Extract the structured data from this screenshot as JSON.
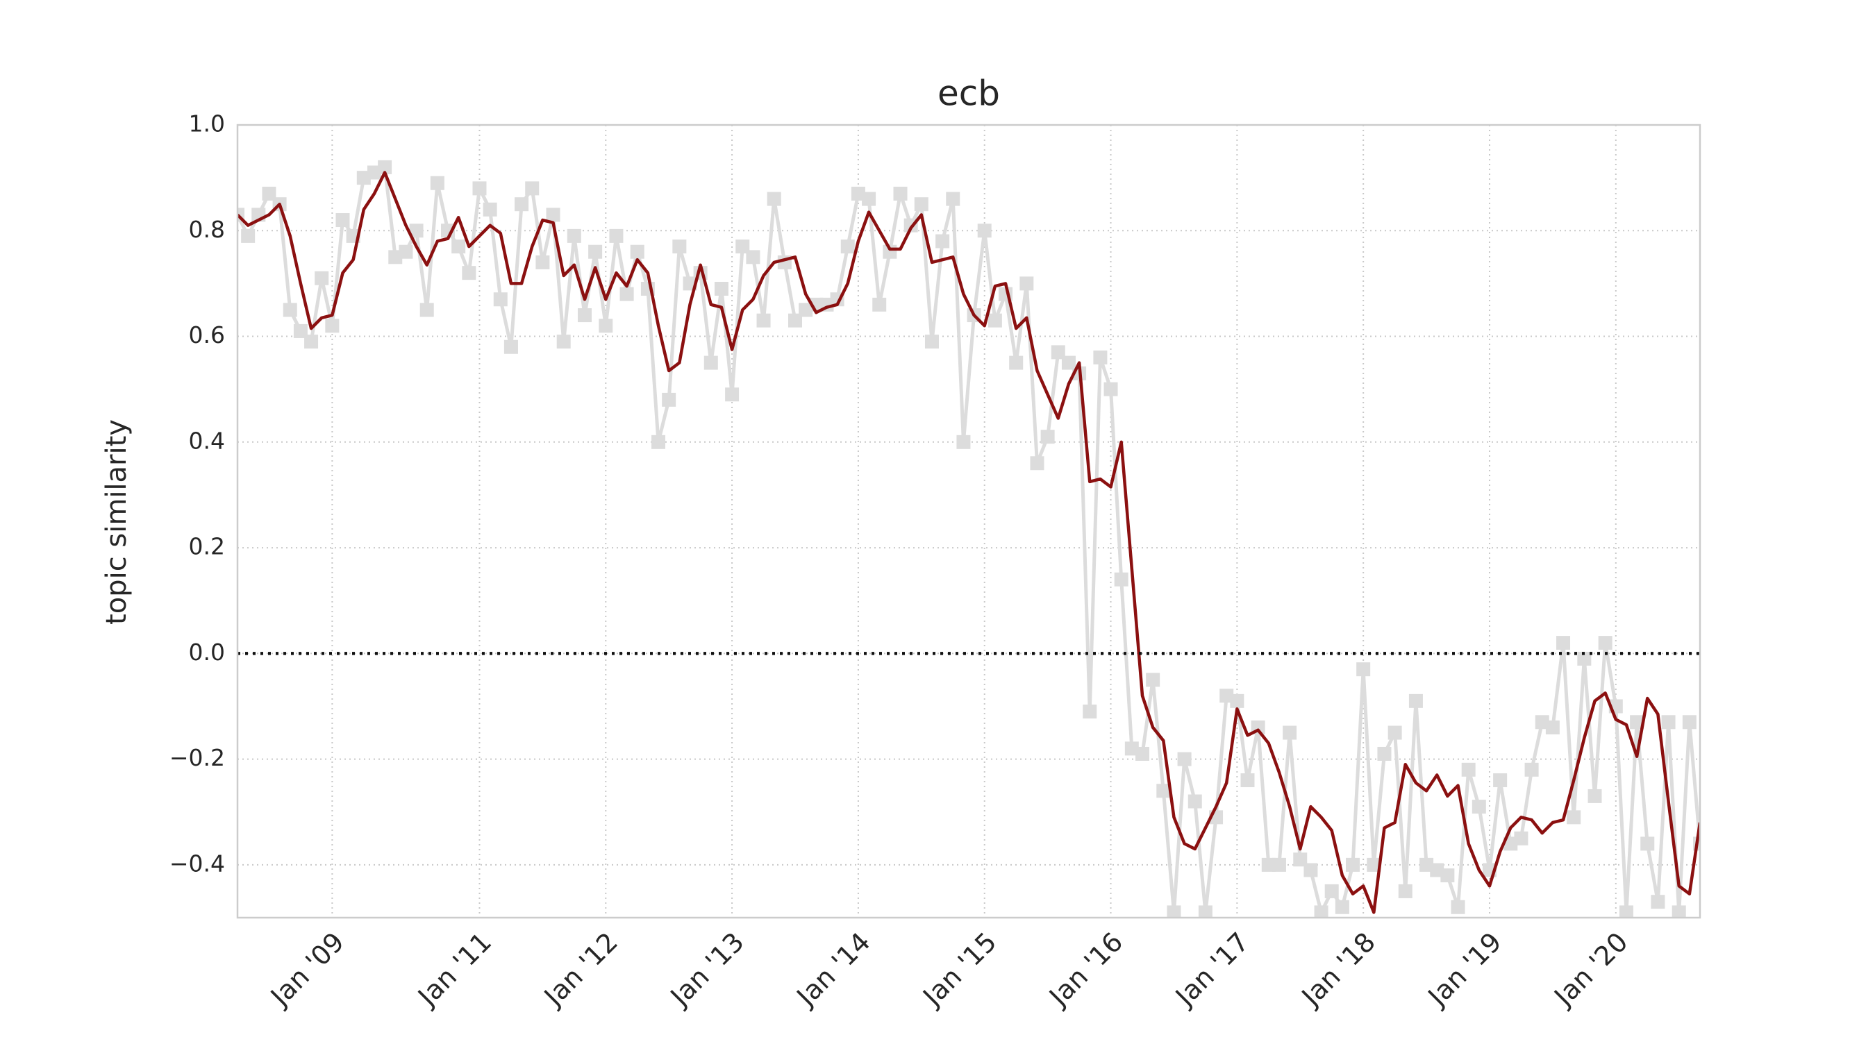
{
  "chart_data": {
    "type": "line",
    "title": "ecb",
    "y_label": "topic similarity",
    "categories": [
      null,
      null,
      null,
      null,
      null,
      null,
      null,
      null,
      null,
      "Jan '09",
      null,
      null,
      null,
      null,
      null,
      null,
      null,
      null,
      null,
      null,
      null,
      null,
      null,
      "Jan '11",
      null,
      null,
      null,
      null,
      null,
      null,
      null,
      null,
      null,
      null,
      null,
      "Jan '12",
      null,
      null,
      null,
      null,
      null,
      null,
      null,
      null,
      null,
      null,
      null,
      "Jan '13",
      null,
      null,
      null,
      null,
      null,
      null,
      null,
      null,
      null,
      null,
      null,
      "Jan '14",
      null,
      null,
      null,
      null,
      null,
      null,
      null,
      null,
      null,
      null,
      null,
      "Jan '15",
      null,
      null,
      null,
      null,
      null,
      null,
      null,
      null,
      null,
      null,
      null,
      "Jan '16",
      null,
      null,
      null,
      null,
      null,
      null,
      null,
      null,
      null,
      null,
      null,
      "Jan '17",
      null,
      null,
      null,
      null,
      null,
      null,
      null,
      null,
      null,
      null,
      null,
      "Jan '18",
      null,
      null,
      null,
      null,
      null,
      null,
      null,
      null,
      null,
      null,
      null,
      "Jan '19",
      null,
      null,
      null,
      null,
      null,
      null,
      null,
      null,
      null,
      null,
      null,
      "Jan '20",
      null,
      null,
      null,
      null,
      null,
      null,
      null,
      null
    ],
    "series": [
      {
        "color": "#dcdcdc",
        "marker": "square",
        "values": [
          0.83,
          0.79,
          0.83,
          0.87,
          0.85,
          0.65,
          0.61,
          0.59,
          0.71,
          0.62,
          0.82,
          0.79,
          0.9,
          0.91,
          0.92,
          0.75,
          0.76,
          0.8,
          0.65,
          0.89,
          0.8,
          0.77,
          0.72,
          0.88,
          0.84,
          0.67,
          0.58,
          0.85,
          0.88,
          0.74,
          0.83,
          0.59,
          0.79,
          0.64,
          0.76,
          0.62,
          0.79,
          0.68,
          0.76,
          0.69,
          0.4,
          0.48,
          0.77,
          0.7,
          0.72,
          0.55,
          0.69,
          0.49,
          0.77,
          0.75,
          0.63,
          0.86,
          0.74,
          0.63,
          0.65,
          0.66,
          0.66,
          0.67,
          0.77,
          0.87,
          0.86,
          0.66,
          0.76,
          0.87,
          0.81,
          0.85,
          0.59,
          0.78,
          0.86,
          0.4,
          0.64,
          0.8,
          0.63,
          0.68,
          0.55,
          0.7,
          0.36,
          0.41,
          0.57,
          0.55,
          0.53,
          -0.11,
          0.56,
          0.5,
          0.14,
          -0.18,
          -0.19,
          -0.05,
          -0.26,
          -0.49,
          -0.2,
          -0.28,
          -0.49,
          -0.31,
          -0.08,
          -0.09,
          -0.24,
          -0.14,
          -0.4,
          -0.4,
          -0.15,
          -0.39,
          -0.41,
          -0.49,
          -0.45,
          -0.48,
          -0.4,
          -0.03,
          -0.4,
          -0.19,
          -0.15,
          -0.45,
          -0.09,
          -0.4,
          -0.41,
          -0.42,
          -0.48,
          -0.22,
          -0.29,
          -0.41,
          -0.24,
          -0.36,
          -0.35,
          -0.22,
          -0.13,
          -0.14,
          0.02,
          -0.31,
          -0.01,
          -0.27,
          0.02,
          -0.1,
          -0.49,
          -0.13,
          -0.36,
          -0.47,
          -0.13,
          -0.49,
          -0.13,
          -0.36
        ]
      },
      {
        "color": "#8b1010",
        "values": [
          0.83,
          0.81,
          0.82,
          0.83,
          0.85,
          0.79,
          0.7,
          0.615,
          0.635,
          0.64,
          0.72,
          0.745,
          0.84,
          0.87,
          0.91,
          0.86,
          0.81,
          0.77,
          0.735,
          0.78,
          0.785,
          0.825,
          0.77,
          0.79,
          0.81,
          0.795,
          0.7,
          0.7,
          0.77,
          0.82,
          0.815,
          0.715,
          0.735,
          0.67,
          0.73,
          0.67,
          0.72,
          0.695,
          0.745,
          0.72,
          0.62,
          0.535,
          0.55,
          0.66,
          0.735,
          0.66,
          0.655,
          0.575,
          0.65,
          0.67,
          0.715,
          0.74,
          0.745,
          0.75,
          0.68,
          0.645,
          0.655,
          0.66,
          0.7,
          0.78,
          0.835,
          0.8,
          0.765,
          0.765,
          0.805,
          0.83,
          0.74,
          0.745,
          0.75,
          0.68,
          0.64,
          0.62,
          0.695,
          0.7,
          0.615,
          0.635,
          0.535,
          0.49,
          0.445,
          0.51,
          0.55,
          0.325,
          0.33,
          0.315,
          0.4,
          0.16,
          -0.08,
          -0.14,
          -0.165,
          -0.31,
          -0.36,
          -0.37,
          -0.33,
          -0.29,
          -0.245,
          -0.105,
          -0.155,
          -0.145,
          -0.17,
          -0.225,
          -0.29,
          -0.37,
          -0.29,
          -0.31,
          -0.335,
          -0.42,
          -0.455,
          -0.44,
          -0.49,
          -0.33,
          -0.32,
          -0.21,
          -0.245,
          -0.26,
          -0.23,
          -0.27,
          -0.25,
          -0.36,
          -0.41,
          -0.44,
          -0.375,
          -0.33,
          -0.31,
          -0.315,
          -0.34,
          -0.32,
          -0.315,
          -0.24,
          -0.16,
          -0.09,
          -0.075,
          -0.125,
          -0.135,
          -0.195,
          -0.085,
          -0.115,
          -0.28,
          -0.44,
          -0.455,
          -0.32
        ]
      }
    ],
    "ylim": [
      -0.5,
      1.0
    ],
    "yticks": [
      {
        "value": -0.4,
        "label": "−0.4"
      },
      {
        "value": -0.2,
        "label": "−0.2"
      },
      {
        "value": 0,
        "label": "0.0"
      },
      0.2,
      0.4,
      0.6,
      0.8,
      {
        "value": 1.0,
        "label": "1.0"
      }
    ],
    "reference_line": 0,
    "grid": true
  }
}
